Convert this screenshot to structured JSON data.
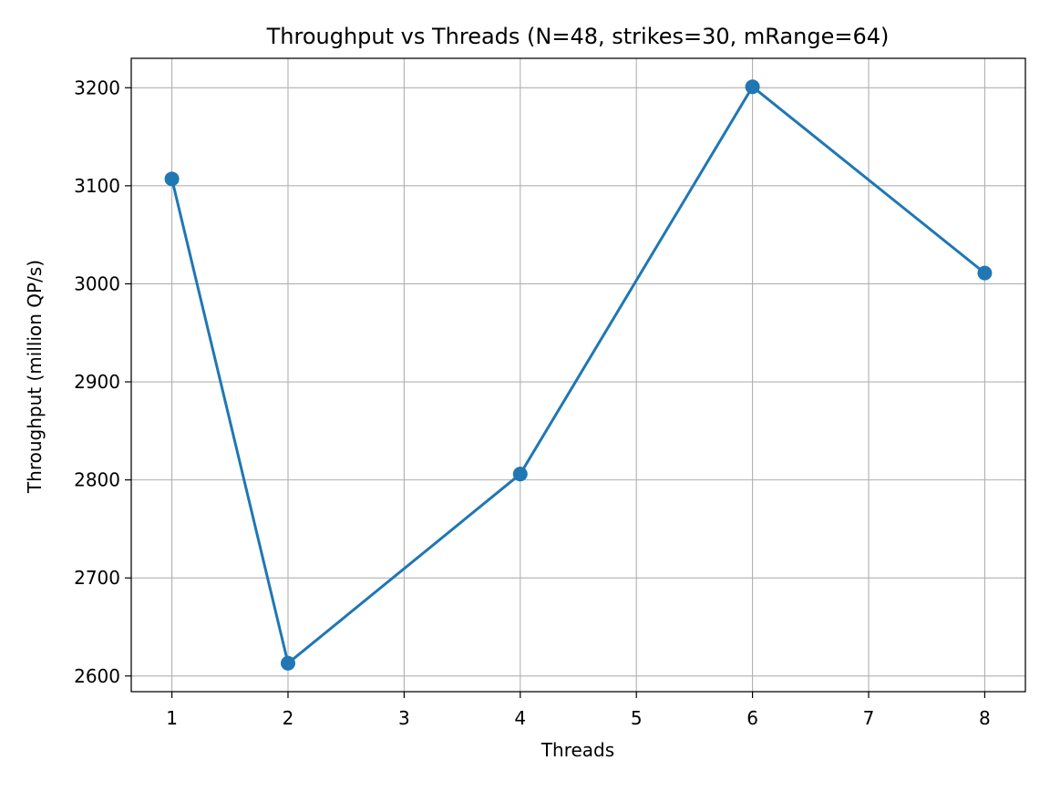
{
  "chart_data": {
    "type": "line",
    "title": "Throughput vs Threads (N=48, strikes=30, mRange=64)",
    "xlabel": "Threads",
    "ylabel": "Throughput (million QP/s)",
    "xlim": [
      0.65,
      8.35
    ],
    "ylim": [
      2584,
      3230
    ],
    "xticks": [
      1,
      2,
      3,
      4,
      5,
      6,
      7,
      8
    ],
    "yticks": [
      2600,
      2700,
      2800,
      2900,
      3000,
      3100,
      3200
    ],
    "grid": true,
    "legend": "none",
    "series": [
      {
        "color": "#1f77b4",
        "marker": "circle",
        "x": [
          1,
          2,
          4,
          6,
          8
        ],
        "y": [
          3107,
          2613,
          2806,
          3201,
          3011
        ]
      }
    ]
  }
}
